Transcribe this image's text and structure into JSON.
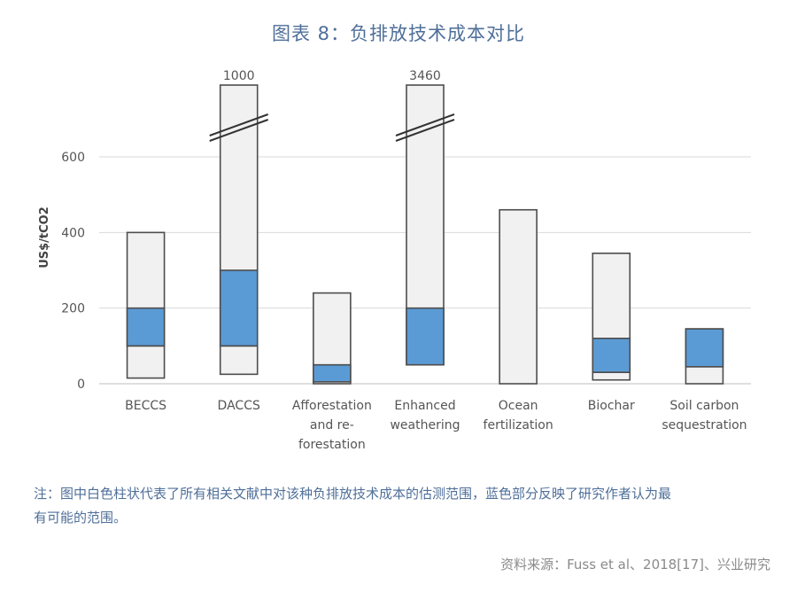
{
  "title": "图表 8：负排放技术成本对比",
  "note": "注：图中白色柱状代表了所有相关文献中对该种负排放技术成本的估测范围，蓝色部分反映了研究作者认为最有可能的范围。",
  "source": "资料来源：Fuss et al、2018[17]、兴业研究",
  "colors": {
    "full_range": "#f1f1f1",
    "likely_range": "#5b9bd5",
    "grid": "#d9d9d9",
    "title": "#4f6f99"
  },
  "chart_data": {
    "type": "bar",
    "ylabel": "US$/tCO2",
    "ylim": [
      0,
      600
    ],
    "yticks": [
      0,
      200,
      400,
      600
    ],
    "grid": true,
    "categories": [
      [
        "BECCS"
      ],
      [
        "DACCS"
      ],
      [
        "Afforestation",
        "and re-",
        "forestation"
      ],
      [
        "Enhanced",
        "weathering"
      ],
      [
        "Ocean",
        "fertilization"
      ],
      [
        "Biochar"
      ],
      [
        "Soil carbon",
        "sequestration"
      ]
    ],
    "full_range": [
      [
        15,
        400
      ],
      [
        25,
        1000
      ],
      [
        0,
        240
      ],
      [
        50,
        3460
      ],
      [
        0,
        460
      ],
      [
        10,
        345
      ],
      [
        0,
        145
      ]
    ],
    "likely_range": [
      [
        100,
        200
      ],
      [
        100,
        300
      ],
      [
        5,
        50
      ],
      [
        50,
        200
      ],
      null,
      [
        30,
        120
      ],
      [
        45,
        145
      ]
    ],
    "internal_lines": [
      [
        100
      ],
      [
        100
      ],
      [],
      [],
      [],
      [
        30
      ],
      [
        45
      ]
    ],
    "broken_axis_labels": [
      "",
      "1000",
      "",
      "3460",
      "",
      "",
      ""
    ]
  }
}
